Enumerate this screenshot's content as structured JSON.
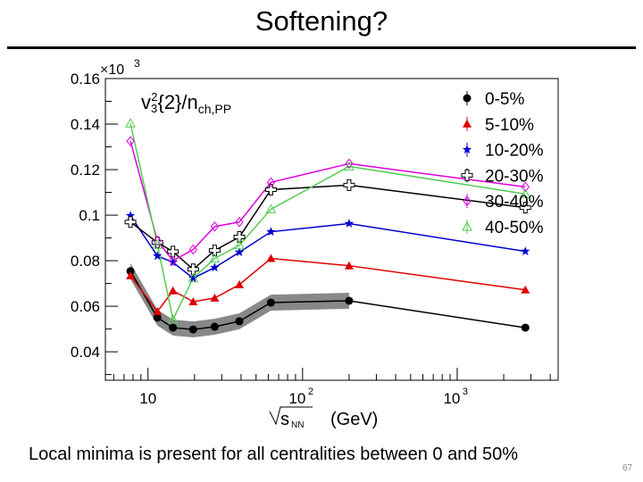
{
  "slide": {
    "title": "Softening?",
    "caption": "Local minima is present for all centralities between 0 and 50%",
    "page_number": "67"
  },
  "chart_data": {
    "type": "line",
    "title": "",
    "plot_label": "v3²{2}/nch,PP",
    "plot_label_parts": {
      "base": "v",
      "sup": "2",
      "sub": "3",
      "mid": "{2}/n",
      "sub2": "ch,PP"
    },
    "xlabel": "√sNN (GeV)",
    "xlabel_parts": {
      "s": "s",
      "sub": "NN",
      "unit": "(GeV)"
    },
    "ylabel": "",
    "y_multiplier": "×10",
    "y_multiplier_exp": "3",
    "x_scale": "log",
    "xlim": [
      5.3,
      4500
    ],
    "ylim": [
      0.0275,
      0.16
    ],
    "x_tick_labels": [
      {
        "value": 10,
        "label": "10"
      },
      {
        "value": 100,
        "label": "10",
        "exp": "2"
      },
      {
        "value": 1000,
        "label": "10",
        "exp": "3"
      }
    ],
    "y_ticks": [
      0.04,
      0.06,
      0.08,
      0.1,
      0.12,
      0.14,
      0.16
    ],
    "y_tick_labels": [
      "0.04",
      "0.06",
      "0.08",
      "0.1",
      "0.12",
      "0.14",
      "0.16"
    ],
    "grid": false,
    "legend_position": "top-right",
    "x": [
      7.7,
      11.5,
      14.5,
      19.6,
      27,
      39,
      62.4,
      200,
      2760
    ],
    "series": [
      {
        "name": "0-5%",
        "color": "#000000",
        "marker": "filled-circle",
        "band": 0.0035,
        "values": [
          0.0754,
          0.055,
          0.0506,
          0.0498,
          0.051,
          0.0534,
          0.0616,
          0.0624,
          0.0506
        ]
      },
      {
        "name": "5-10%",
        "color": "#e00000",
        "marker": "filled-triangle",
        "values": [
          0.0734,
          0.0577,
          0.0668,
          0.062,
          0.0636,
          0.0695,
          0.081,
          0.0778,
          0.0672
        ]
      },
      {
        "name": "10-20%",
        "color": "#0000cc",
        "marker": "star",
        "values": [
          0.0998,
          0.0821,
          0.0793,
          0.0723,
          0.077,
          0.0837,
          0.0927,
          0.0963,
          0.0841
        ]
      },
      {
        "name": "20-30%",
        "color": "#000000",
        "marker": "open-cross",
        "values": [
          0.097,
          0.088,
          0.084,
          0.0762,
          0.0845,
          0.0904,
          0.1112,
          0.1132,
          0.1033
        ]
      },
      {
        "name": "30-40%",
        "color": "#dd00dd",
        "marker": "open-diamond",
        "values": [
          0.1325,
          0.0888,
          0.08,
          0.0849,
          0.095,
          0.097,
          0.1144,
          0.1226,
          0.1124
        ]
      },
      {
        "name": "40-50%",
        "color": "#55cc55",
        "marker": "open-triangle",
        "values": [
          0.1403,
          0.087,
          0.0542,
          0.0723,
          0.081,
          0.0868,
          0.1026,
          0.1214,
          0.1093
        ]
      }
    ]
  }
}
